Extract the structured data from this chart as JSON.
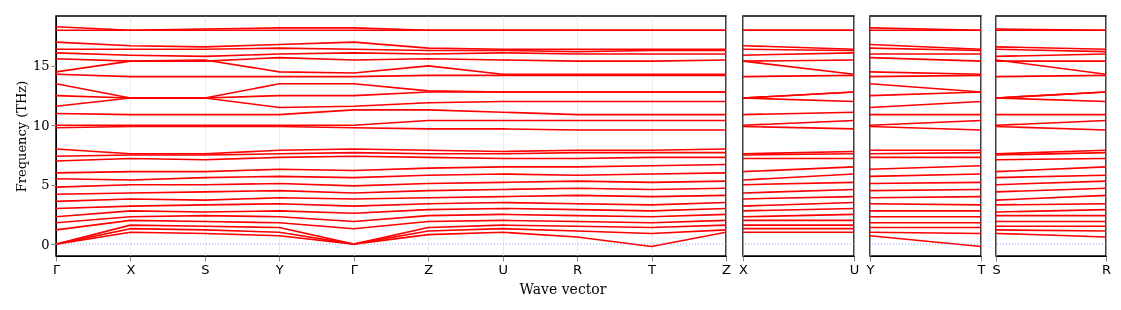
{
  "chart_data": [
    {
      "type": "line",
      "ylabel": "Frequency (THz)",
      "xlabel": "Wave vector",
      "categories": [
        "Γ",
        "X",
        "S",
        "Y",
        "Γ",
        "Z",
        "U",
        "R",
        "T",
        "Z"
      ],
      "ylim": [
        -1,
        19.2
      ],
      "yticks": [
        0,
        5,
        10,
        15
      ],
      "grid": "x",
      "ref_lines": [
        {
          "axis": "y",
          "value": 0,
          "color": "#8080ff",
          "line_style": "dotted"
        }
      ],
      "series": [
        {
          "color": "#ff0000",
          "values": [
            0,
            1.0,
            0.9,
            0.7,
            0,
            0.8,
            1.0,
            0.6,
            -0.2,
            1.0
          ]
        },
        {
          "color": "#ff0000",
          "values": [
            0,
            1.3,
            1.2,
            1.0,
            0,
            1.1,
            1.3,
            1.1,
            0.9,
            1.2
          ]
        },
        {
          "color": "#ff0000",
          "values": [
            0,
            1.6,
            1.5,
            1.4,
            0,
            1.4,
            1.6,
            1.5,
            1.4,
            1.6
          ]
        },
        {
          "color": "#ff0000",
          "values": [
            1.2,
            2.0,
            1.9,
            1.8,
            1.3,
            1.9,
            2.0,
            1.9,
            1.8,
            2.0
          ]
        },
        {
          "color": "#ff0000",
          "values": [
            1.8,
            2.3,
            2.4,
            2.3,
            1.9,
            2.4,
            2.5,
            2.4,
            2.3,
            2.5
          ]
        },
        {
          "color": "#ff0000",
          "values": [
            2.3,
            2.8,
            2.7,
            2.8,
            2.6,
            2.9,
            3.0,
            2.9,
            2.8,
            3.0
          ]
        },
        {
          "color": "#ff0000",
          "values": [
            3.0,
            3.2,
            3.3,
            3.4,
            3.2,
            3.4,
            3.5,
            3.4,
            3.3,
            3.5
          ]
        },
        {
          "color": "#ff0000",
          "values": [
            3.6,
            3.8,
            3.7,
            3.9,
            3.8,
            3.9,
            4.0,
            4.1,
            4.0,
            4.1
          ]
        },
        {
          "color": "#ff0000",
          "values": [
            4.2,
            4.3,
            4.4,
            4.5,
            4.3,
            4.5,
            4.6,
            4.7,
            4.6,
            4.7
          ]
        },
        {
          "color": "#ff0000",
          "values": [
            4.8,
            5.0,
            5.0,
            5.1,
            4.9,
            5.1,
            5.2,
            5.3,
            5.2,
            5.3
          ]
        },
        {
          "color": "#ff0000",
          "values": [
            5.5,
            5.4,
            5.6,
            5.7,
            5.6,
            5.8,
            5.9,
            5.8,
            5.9,
            6.0
          ]
        },
        {
          "color": "#ff0000",
          "values": [
            6.0,
            6.1,
            6.1,
            6.3,
            6.2,
            6.4,
            6.5,
            6.5,
            6.6,
            6.7
          ]
        },
        {
          "color": "#ff0000",
          "values": [
            7.0,
            7.2,
            7.1,
            7.3,
            7.4,
            7.3,
            7.2,
            7.2,
            7.3,
            7.3
          ]
        },
        {
          "color": "#ff0000",
          "values": [
            7.4,
            7.5,
            7.5,
            7.6,
            7.7,
            7.6,
            7.6,
            7.7,
            7.7,
            7.7
          ]
        },
        {
          "color": "#ff0000",
          "values": [
            8.0,
            7.6,
            7.6,
            7.9,
            8.0,
            7.9,
            7.8,
            7.9,
            7.9,
            8.0
          ]
        },
        {
          "color": "#ff0000",
          "values": [
            9.8,
            9.9,
            9.9,
            9.9,
            9.8,
            9.7,
            9.7,
            9.6,
            9.6,
            9.6
          ]
        },
        {
          "color": "#ff0000",
          "values": [
            10.0,
            10.0,
            10.0,
            10.0,
            10.0,
            10.4,
            10.4,
            10.4,
            10.4,
            10.4
          ]
        },
        {
          "color": "#ff0000",
          "values": [
            11.0,
            10.9,
            10.9,
            10.9,
            11.3,
            11.3,
            11.1,
            10.9,
            10.9,
            10.9
          ]
        },
        {
          "color": "#ff0000",
          "values": [
            11.6,
            12.3,
            12.3,
            11.5,
            11.6,
            11.9,
            12.0,
            12.0,
            12.0,
            12.0
          ]
        },
        {
          "color": "#ff0000",
          "values": [
            12.5,
            12.3,
            12.3,
            12.5,
            12.5,
            12.8,
            12.8,
            12.8,
            12.8,
            12.8
          ]
        },
        {
          "color": "#ff0000",
          "values": [
            13.5,
            12.3,
            12.3,
            13.5,
            13.5,
            12.9,
            12.8,
            12.8,
            12.8,
            12.8
          ]
        },
        {
          "color": "#ff0000",
          "values": [
            14.3,
            14.1,
            14.1,
            14.1,
            14.1,
            14.2,
            14.2,
            14.2,
            14.2,
            14.2
          ]
        },
        {
          "color": "#ff0000",
          "values": [
            14.5,
            15.4,
            15.5,
            14.5,
            14.4,
            15.0,
            14.3,
            14.3,
            14.3,
            14.3
          ]
        },
        {
          "color": "#ff0000",
          "values": [
            15.6,
            15.4,
            15.4,
            15.7,
            15.5,
            15.6,
            15.5,
            15.4,
            15.4,
            15.5
          ]
        },
        {
          "color": "#ff0000",
          "values": [
            16.1,
            15.9,
            15.8,
            16.0,
            16.1,
            16.0,
            16.1,
            16.0,
            16.0,
            16.0
          ]
        },
        {
          "color": "#ff0000",
          "values": [
            16.4,
            16.4,
            16.4,
            16.5,
            16.4,
            16.3,
            16.3,
            16.2,
            16.3,
            16.3
          ]
        },
        {
          "color": "#ff0000",
          "values": [
            17.0,
            16.7,
            16.6,
            16.8,
            17.0,
            16.5,
            16.4,
            16.4,
            16.4,
            16.4
          ]
        },
        {
          "color": "#ff0000",
          "values": [
            18.0,
            18.0,
            18.0,
            18.0,
            18.0,
            18.0,
            18.0,
            18.0,
            18.0,
            18.0
          ]
        },
        {
          "color": "#ff0000",
          "values": [
            18.3,
            18.0,
            18.1,
            18.2,
            18.2,
            18.0,
            18.0,
            18.0,
            18.0,
            18.0
          ]
        }
      ]
    },
    {
      "type": "line",
      "categories": [
        "X",
        "U"
      ],
      "ylim": [
        -1,
        19.2
      ],
      "tick_labels": "x",
      "grid": "x",
      "ref_lines": [
        {
          "axis": "y",
          "value": 0,
          "color": "#8080ff",
          "line_style": "dotted"
        }
      ],
      "series": [
        {
          "color": "#ff0000",
          "values": [
            1.0,
            1.0
          ]
        },
        {
          "color": "#ff0000",
          "values": [
            1.3,
            1.3
          ]
        },
        {
          "color": "#ff0000",
          "values": [
            1.6,
            1.6
          ]
        },
        {
          "color": "#ff0000",
          "values": [
            2.0,
            2.0
          ]
        },
        {
          "color": "#ff0000",
          "values": [
            2.3,
            2.5
          ]
        },
        {
          "color": "#ff0000",
          "values": [
            2.8,
            3.0
          ]
        },
        {
          "color": "#ff0000",
          "values": [
            3.2,
            3.5
          ]
        },
        {
          "color": "#ff0000",
          "values": [
            3.8,
            4.0
          ]
        },
        {
          "color": "#ff0000",
          "values": [
            4.3,
            4.6
          ]
        },
        {
          "color": "#ff0000",
          "values": [
            5.0,
            5.2
          ]
        },
        {
          "color": "#ff0000",
          "values": [
            5.4,
            5.9
          ]
        },
        {
          "color": "#ff0000",
          "values": [
            6.1,
            6.5
          ]
        },
        {
          "color": "#ff0000",
          "values": [
            7.2,
            7.2
          ]
        },
        {
          "color": "#ff0000",
          "values": [
            7.5,
            7.6
          ]
        },
        {
          "color": "#ff0000",
          "values": [
            7.6,
            7.8
          ]
        },
        {
          "color": "#ff0000",
          "values": [
            9.9,
            9.7
          ]
        },
        {
          "color": "#ff0000",
          "values": [
            10.0,
            10.4
          ]
        },
        {
          "color": "#ff0000",
          "values": [
            10.9,
            11.1
          ]
        },
        {
          "color": "#ff0000",
          "values": [
            12.3,
            12.0
          ]
        },
        {
          "color": "#ff0000",
          "values": [
            12.3,
            12.8
          ]
        },
        {
          "color": "#ff0000",
          "values": [
            12.3,
            12.8
          ]
        },
        {
          "color": "#ff0000",
          "values": [
            14.1,
            14.2
          ]
        },
        {
          "color": "#ff0000",
          "values": [
            15.4,
            14.3
          ]
        },
        {
          "color": "#ff0000",
          "values": [
            15.4,
            15.5
          ]
        },
        {
          "color": "#ff0000",
          "values": [
            15.9,
            16.1
          ]
        },
        {
          "color": "#ff0000",
          "values": [
            16.4,
            16.3
          ]
        },
        {
          "color": "#ff0000",
          "values": [
            16.7,
            16.4
          ]
        },
        {
          "color": "#ff0000",
          "values": [
            18.0,
            18.0
          ]
        },
        {
          "color": "#ff0000",
          "values": [
            18.0,
            18.0
          ]
        }
      ]
    },
    {
      "type": "line",
      "categories": [
        "Y",
        "T"
      ],
      "ylim": [
        -1,
        19.2
      ],
      "tick_labels": "x",
      "grid": "x",
      "ref_lines": [
        {
          "axis": "y",
          "value": 0,
          "color": "#8080ff",
          "line_style": "dotted"
        }
      ],
      "series": [
        {
          "color": "#ff0000",
          "values": [
            0.7,
            -0.2
          ]
        },
        {
          "color": "#ff0000",
          "values": [
            1.0,
            0.9
          ]
        },
        {
          "color": "#ff0000",
          "values": [
            1.4,
            1.4
          ]
        },
        {
          "color": "#ff0000",
          "values": [
            1.8,
            1.8
          ]
        },
        {
          "color": "#ff0000",
          "values": [
            2.3,
            2.3
          ]
        },
        {
          "color": "#ff0000",
          "values": [
            2.8,
            2.8
          ]
        },
        {
          "color": "#ff0000",
          "values": [
            3.4,
            3.3
          ]
        },
        {
          "color": "#ff0000",
          "values": [
            3.9,
            4.0
          ]
        },
        {
          "color": "#ff0000",
          "values": [
            4.5,
            4.6
          ]
        },
        {
          "color": "#ff0000",
          "values": [
            5.1,
            5.2
          ]
        },
        {
          "color": "#ff0000",
          "values": [
            5.7,
            5.9
          ]
        },
        {
          "color": "#ff0000",
          "values": [
            6.3,
            6.6
          ]
        },
        {
          "color": "#ff0000",
          "values": [
            7.3,
            7.3
          ]
        },
        {
          "color": "#ff0000",
          "values": [
            7.6,
            7.7
          ]
        },
        {
          "color": "#ff0000",
          "values": [
            7.9,
            7.9
          ]
        },
        {
          "color": "#ff0000",
          "values": [
            9.9,
            9.6
          ]
        },
        {
          "color": "#ff0000",
          "values": [
            10.0,
            10.4
          ]
        },
        {
          "color": "#ff0000",
          "values": [
            10.9,
            10.9
          ]
        },
        {
          "color": "#ff0000",
          "values": [
            11.5,
            12.0
          ]
        },
        {
          "color": "#ff0000",
          "values": [
            12.5,
            12.8
          ]
        },
        {
          "color": "#ff0000",
          "values": [
            13.5,
            12.8
          ]
        },
        {
          "color": "#ff0000",
          "values": [
            14.1,
            14.2
          ]
        },
        {
          "color": "#ff0000",
          "values": [
            14.5,
            14.3
          ]
        },
        {
          "color": "#ff0000",
          "values": [
            15.7,
            15.4
          ]
        },
        {
          "color": "#ff0000",
          "values": [
            16.0,
            16.0
          ]
        },
        {
          "color": "#ff0000",
          "values": [
            16.5,
            16.3
          ]
        },
        {
          "color": "#ff0000",
          "values": [
            16.8,
            16.4
          ]
        },
        {
          "color": "#ff0000",
          "values": [
            18.0,
            18.0
          ]
        },
        {
          "color": "#ff0000",
          "values": [
            18.2,
            18.0
          ]
        }
      ]
    },
    {
      "type": "line",
      "categories": [
        "S",
        "R"
      ],
      "ylim": [
        -1,
        19.2
      ],
      "tick_labels": "x",
      "grid": "x",
      "ref_lines": [
        {
          "axis": "y",
          "value": 0,
          "color": "#8080ff",
          "line_style": "dotted"
        }
      ],
      "series": [
        {
          "color": "#ff0000",
          "values": [
            0.9,
            0.6
          ]
        },
        {
          "color": "#ff0000",
          "values": [
            1.2,
            1.1
          ]
        },
        {
          "color": "#ff0000",
          "values": [
            1.5,
            1.5
          ]
        },
        {
          "color": "#ff0000",
          "values": [
            1.9,
            1.9
          ]
        },
        {
          "color": "#ff0000",
          "values": [
            2.4,
            2.4
          ]
        },
        {
          "color": "#ff0000",
          "values": [
            2.7,
            2.9
          ]
        },
        {
          "color": "#ff0000",
          "values": [
            3.3,
            3.4
          ]
        },
        {
          "color": "#ff0000",
          "values": [
            3.7,
            4.1
          ]
        },
        {
          "color": "#ff0000",
          "values": [
            4.4,
            4.7
          ]
        },
        {
          "color": "#ff0000",
          "values": [
            5.0,
            5.3
          ]
        },
        {
          "color": "#ff0000",
          "values": [
            5.6,
            5.8
          ]
        },
        {
          "color": "#ff0000",
          "values": [
            6.1,
            6.5
          ]
        },
        {
          "color": "#ff0000",
          "values": [
            7.1,
            7.2
          ]
        },
        {
          "color": "#ff0000",
          "values": [
            7.5,
            7.7
          ]
        },
        {
          "color": "#ff0000",
          "values": [
            7.6,
            7.9
          ]
        },
        {
          "color": "#ff0000",
          "values": [
            9.9,
            9.6
          ]
        },
        {
          "color": "#ff0000",
          "values": [
            10.0,
            10.4
          ]
        },
        {
          "color": "#ff0000",
          "values": [
            10.9,
            10.9
          ]
        },
        {
          "color": "#ff0000",
          "values": [
            12.3,
            12.0
          ]
        },
        {
          "color": "#ff0000",
          "values": [
            12.3,
            12.8
          ]
        },
        {
          "color": "#ff0000",
          "values": [
            12.3,
            12.8
          ]
        },
        {
          "color": "#ff0000",
          "values": [
            14.1,
            14.2
          ]
        },
        {
          "color": "#ff0000",
          "values": [
            15.5,
            14.3
          ]
        },
        {
          "color": "#ff0000",
          "values": [
            15.4,
            15.4
          ]
        },
        {
          "color": "#ff0000",
          "values": [
            15.8,
            16.0
          ]
        },
        {
          "color": "#ff0000",
          "values": [
            16.4,
            16.2
          ]
        },
        {
          "color": "#ff0000",
          "values": [
            16.6,
            16.4
          ]
        },
        {
          "color": "#ff0000",
          "values": [
            18.0,
            18.0
          ]
        },
        {
          "color": "#ff0000",
          "values": [
            18.1,
            18.0
          ]
        }
      ]
    }
  ]
}
